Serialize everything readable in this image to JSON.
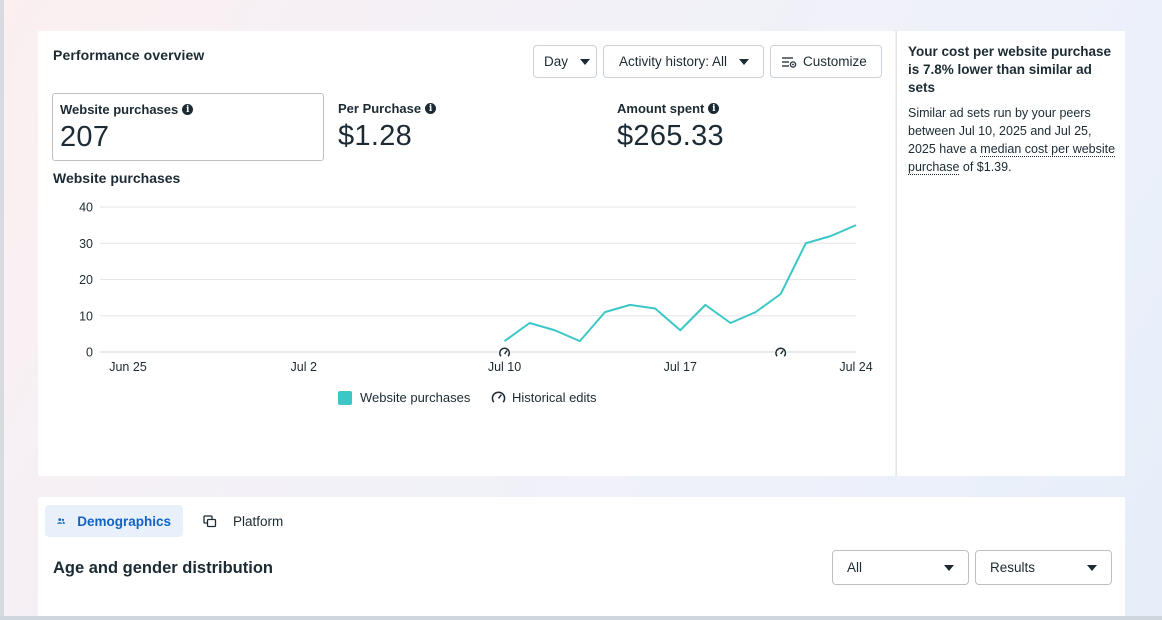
{
  "performance": {
    "title": "Performance overview",
    "controls": {
      "day_label": "Day",
      "activity_label": "Activity history: All",
      "customize_label": "Customize"
    },
    "metrics": [
      {
        "label": "Website purchases",
        "value": "207"
      },
      {
        "label": "Per Purchase",
        "value": "$1.28"
      },
      {
        "label": "Amount spent",
        "value": "$265.33"
      }
    ],
    "chart_title": "Website purchases",
    "legend": {
      "series_label": "Website purchases",
      "edits_label": "Historical edits"
    }
  },
  "chart_data": {
    "type": "line",
    "title": "Website purchases",
    "xlabel": "",
    "ylabel": "",
    "ylim": [
      0,
      40
    ],
    "yticks": [
      0,
      10,
      20,
      30,
      40
    ],
    "x_tick_labels": [
      {
        "day": 0,
        "label": "Jun 25"
      },
      {
        "day": 7,
        "label": "Jul 2"
      },
      {
        "day": 15,
        "label": "Jul 10"
      },
      {
        "day": 22,
        "label": "Jul 17"
      },
      {
        "day": 29,
        "label": "Jul 24"
      }
    ],
    "x_range": [
      "Jun 25",
      "Jul 24"
    ],
    "grid": true,
    "series": [
      {
        "name": "Website purchases",
        "color": "#3cc7c7",
        "x": [
          "Jul 10",
          "Jul 11",
          "Jul 12",
          "Jul 13",
          "Jul 14",
          "Jul 15",
          "Jul 16",
          "Jul 17",
          "Jul 18",
          "Jul 19",
          "Jul 20",
          "Jul 21",
          "Jul 22",
          "Jul 23",
          "Jul 24"
        ],
        "values": [
          3,
          8,
          6,
          3,
          11,
          13,
          12,
          6,
          13,
          8,
          11,
          16,
          30,
          32,
          35
        ]
      }
    ],
    "historical_edits": [
      "Jul 10",
      "Jul 21"
    ],
    "legend_position": "bottom"
  },
  "insight": {
    "title": "Your cost per website purchase is 7.8% lower than similar ad sets",
    "body_prefix": "Similar ad sets run by your peers between Jul 10, 2025 and Jul 25, 2025 have a ",
    "body_link": "median cost per website purchase",
    "body_suffix": " of $1.39."
  },
  "demographics": {
    "tabs": [
      {
        "label": "Demographics",
        "icon": "people-icon",
        "active": true
      },
      {
        "label": "Platform",
        "icon": "platform-icon",
        "active": false
      }
    ],
    "section_title": "Age and gender distribution",
    "filter_value": "All",
    "metric_value": "Results"
  },
  "colors": {
    "series": "#3cc7c7",
    "accent": "#1463c4",
    "grid": "#e4e6eb"
  }
}
